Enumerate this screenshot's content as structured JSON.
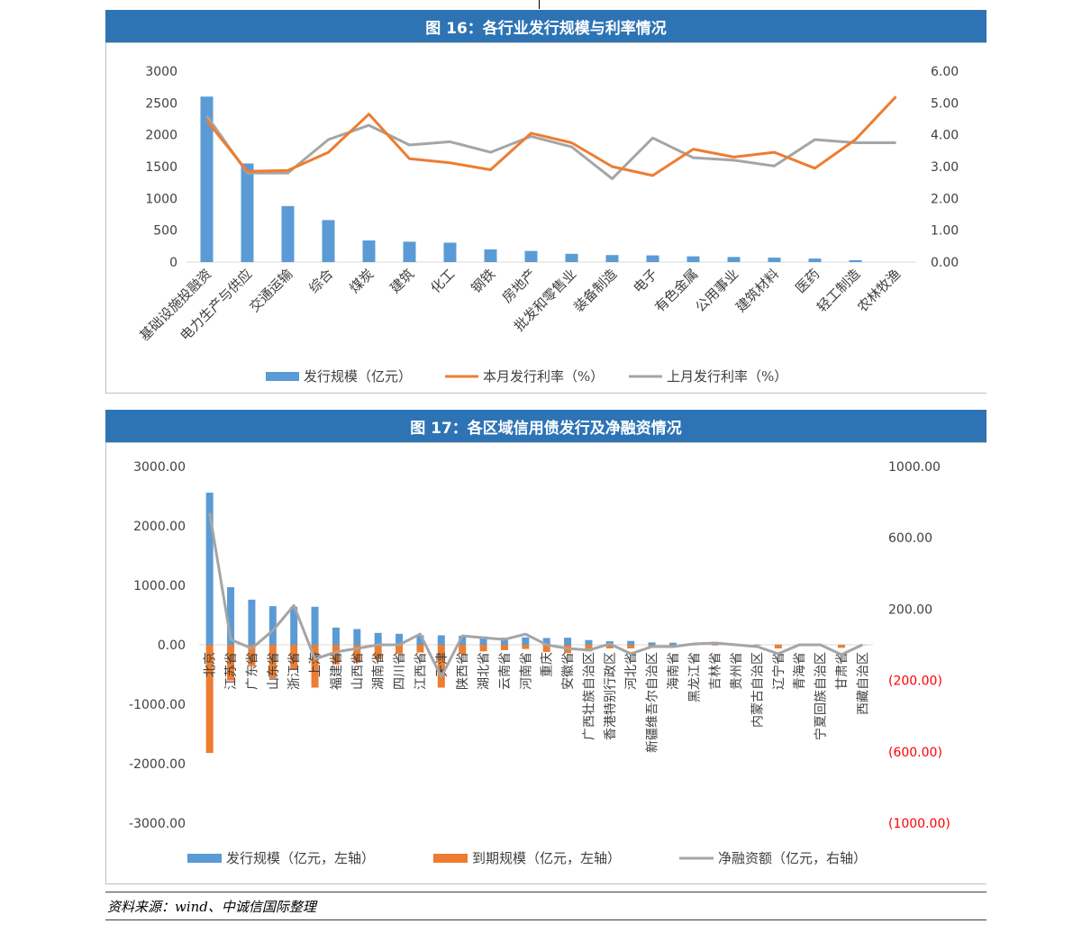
{
  "figures": [
    {
      "label": "图 16：",
      "title": "各行业发行规模与利率情况"
    },
    {
      "label": "图 17：",
      "title": "各区域信用债发行及净融资情况"
    }
  ],
  "source_note": "资料来源：wind、中诚信国际整理",
  "colors": {
    "header": "#2e74b5",
    "blue": "#5b9bd5",
    "orange": "#ed7d31",
    "gray": "#a5a5a5",
    "negative_axis": "#ff0000"
  },
  "chart_data": [
    {
      "type": "bar",
      "categories": [
        "基础设施投融资",
        "电力生产与供应",
        "交通运输",
        "综合",
        "煤炭",
        "建筑",
        "化工",
        "钢铁",
        "房地产",
        "批发和零售业",
        "装备制造",
        "电子",
        "有色金属",
        "公用事业",
        "建筑材料",
        "医药",
        "轻工制造",
        "农林牧渔"
      ],
      "series": [
        {
          "name": "发行规模（亿元）",
          "type": "bar",
          "axis": "left",
          "color": "#5b9bd5",
          "values": [
            2600,
            1550,
            880,
            660,
            340,
            320,
            305,
            200,
            175,
            130,
            110,
            105,
            90,
            80,
            70,
            55,
            30,
            0
          ]
        },
        {
          "name": "本月发行利率（%）",
          "type": "line",
          "axis": "right",
          "color": "#ed7d31",
          "values": [
            4.45,
            2.85,
            2.88,
            3.45,
            4.65,
            3.25,
            3.12,
            2.9,
            4.05,
            3.75,
            3.0,
            2.72,
            3.55,
            3.3,
            3.45,
            2.95,
            3.85,
            5.2
          ]
        },
        {
          "name": "上月发行利率（%）",
          "type": "line",
          "axis": "right",
          "color": "#a5a5a5",
          "values": [
            4.6,
            2.8,
            2.8,
            3.85,
            4.3,
            3.68,
            3.78,
            3.45,
            3.95,
            3.62,
            2.62,
            3.9,
            3.28,
            3.2,
            3.02,
            3.85,
            3.75,
            3.75
          ]
        }
      ],
      "y_left": {
        "ticks": [
          "3000",
          "2500",
          "2000",
          "1500",
          "1000",
          "500",
          "0"
        ],
        "ylim": [
          0,
          3000
        ]
      },
      "y_right": {
        "ticks": [
          "6.00",
          "5.00",
          "4.00",
          "3.00",
          "2.00",
          "1.00",
          "0.00"
        ],
        "ylim": [
          0,
          6
        ]
      },
      "legend_position": "bottom",
      "grid": false
    },
    {
      "type": "bar",
      "categories": [
        "北京",
        "江苏省",
        "广东省",
        "山东省",
        "浙江省",
        "上海",
        "福建省",
        "山西省",
        "湖南省",
        "四川省",
        "江西省",
        "天津",
        "陕西省",
        "湖北省",
        "云南省",
        "河南省",
        "重庆",
        "安徽省",
        "广西壮族自治区",
        "香港特别行政区",
        "河北省",
        "新疆维吾尔自治区",
        "海南省",
        "黑龙江省",
        "吉林省",
        "贵州省",
        "内蒙古自治区",
        "辽宁省",
        "青海省",
        "宁夏回族自治区",
        "甘肃省",
        "西藏自治区"
      ],
      "series": [
        {
          "name": "发行规模（亿元，左轴）",
          "type": "bar",
          "axis": "left",
          "color": "#5b9bd5",
          "values": [
            2560,
            970,
            760,
            650,
            640,
            640,
            290,
            265,
            200,
            185,
            160,
            160,
            150,
            140,
            120,
            125,
            115,
            120,
            80,
            60,
            65,
            40,
            35,
            10,
            10,
            8,
            5,
            5,
            3,
            3,
            2,
            1
          ]
        },
        {
          "name": "到期规模（亿元，左轴）",
          "type": "bar",
          "axis": "left",
          "color": "#ed7d31",
          "values": [
            -1820,
            -600,
            -360,
            -560,
            -420,
            -720,
            -330,
            -300,
            -240,
            -150,
            -130,
            -720,
            -160,
            -110,
            -90,
            -70,
            -120,
            -140,
            -110,
            -60,
            -60,
            -30,
            -20,
            -10,
            -10,
            -8,
            -10,
            -60,
            -3,
            -3,
            -50,
            -5
          ]
        },
        {
          "name": "净融资额（亿元，右轴）",
          "type": "line",
          "axis": "right",
          "color": "#a5a5a5",
          "values": [
            740,
            30,
            -20,
            80,
            220,
            -80,
            -40,
            -20,
            0,
            0,
            60,
            -180,
            50,
            40,
            30,
            60,
            0,
            -20,
            -30,
            5,
            -50,
            -10,
            -10,
            5,
            10,
            0,
            -10,
            -50,
            0,
            0,
            -55,
            0
          ]
        }
      ],
      "y_left": {
        "ticks": [
          "3000.00",
          "2000.00",
          "1000.00",
          "0.00",
          "-1000.00",
          "-2000.00",
          "-3000.00"
        ],
        "ylim": [
          -3000,
          3000
        ]
      },
      "y_right": {
        "ticks": [
          "1000.00",
          "600.00",
          "200.00",
          "(200.00)",
          "(600.00)",
          "(1000.00)"
        ],
        "ylim": [
          -1000,
          1000
        ]
      },
      "legend_position": "bottom",
      "grid": false
    }
  ]
}
